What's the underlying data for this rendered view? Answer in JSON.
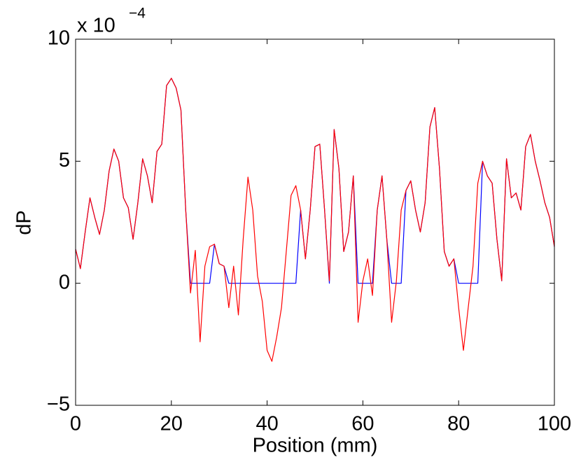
{
  "chart_data": {
    "type": "line",
    "y_exponent_base": "x 10",
    "y_exponent": "−4",
    "xlabel": "Position (mm)",
    "ylabel": "dP",
    "x": [
      0,
      1,
      2,
      3,
      4,
      5,
      6,
      7,
      8,
      9,
      10,
      11,
      12,
      13,
      14,
      15,
      16,
      17,
      18,
      19,
      20,
      21,
      22,
      23,
      24,
      25,
      26,
      27,
      28,
      29,
      30,
      31,
      32,
      33,
      34,
      35,
      36,
      37,
      38,
      39,
      40,
      41,
      42,
      43,
      44,
      45,
      46,
      47,
      48,
      49,
      50,
      51,
      52,
      53,
      54,
      55,
      56,
      57,
      58,
      59,
      60,
      61,
      62,
      63,
      64,
      65,
      66,
      67,
      68,
      69,
      70,
      71,
      72,
      73,
      74,
      75,
      76,
      77,
      78,
      79,
      80,
      81,
      82,
      83,
      84,
      85,
      86,
      87,
      88,
      89,
      90,
      91,
      92,
      93,
      94,
      95,
      96,
      97,
      98,
      99,
      100
    ],
    "series": [
      {
        "color": "#0000ff",
        "values": [
          1.4,
          0.6,
          2.1,
          3.5,
          2.7,
          2.0,
          3.0,
          4.6,
          5.5,
          5.0,
          3.5,
          3.1,
          1.8,
          3.3,
          5.1,
          4.4,
          3.3,
          5.4,
          5.7,
          8.1,
          8.4,
          8.0,
          7.1,
          3.0,
          0,
          0,
          0,
          0,
          0,
          1.6,
          0.8,
          0.7,
          0,
          0,
          0,
          0,
          0,
          0,
          0,
          0,
          0,
          0,
          0,
          0,
          0,
          0,
          0,
          3.0,
          1.0,
          3.0,
          5.6,
          5.7,
          3.0,
          0,
          6.3,
          4.7,
          1.3,
          2.1,
          4.4,
          0,
          0,
          0,
          0,
          3.0,
          4.4,
          1.8,
          0,
          0,
          0,
          3.8,
          4.2,
          3.0,
          2.1,
          3.3,
          6.4,
          7.2,
          4.7,
          1.3,
          0.7,
          1.0,
          0,
          0,
          0,
          0,
          0,
          5.0,
          4.4,
          4.1,
          1.8,
          0.1,
          5.1,
          3.5,
          3.7,
          3.0,
          5.6,
          6.1,
          5.0,
          4.2,
          3.3,
          2.7,
          1.5
        ]
      },
      {
        "color": "#ff0000",
        "values": [
          1.4,
          0.6,
          2.1,
          3.5,
          2.7,
          2.0,
          3.0,
          4.6,
          5.5,
          5.0,
          3.5,
          3.1,
          1.8,
          3.3,
          5.1,
          4.4,
          3.3,
          5.4,
          5.7,
          8.1,
          8.4,
          8.0,
          7.1,
          3.0,
          -0.4,
          1.35,
          -2.4,
          0.7,
          1.5,
          1.6,
          0.8,
          0.7,
          -1.0,
          0.7,
          -1.3,
          1.8,
          4.35,
          3.0,
          0.3,
          -0.75,
          -2.75,
          -3.2,
          -2.2,
          -1.0,
          1.3,
          3.6,
          4.0,
          3.0,
          1.0,
          3.0,
          5.6,
          5.7,
          3.0,
          0.1,
          6.3,
          4.7,
          1.3,
          2.1,
          4.4,
          -1.6,
          0.1,
          1.0,
          -0.5,
          3.0,
          4.4,
          1.8,
          -1.6,
          0.1,
          3.0,
          3.8,
          4.2,
          3.0,
          2.1,
          3.3,
          6.4,
          7.2,
          4.7,
          1.3,
          0.7,
          1.0,
          -1.0,
          -2.75,
          -1.0,
          0.7,
          4.1,
          5.0,
          4.4,
          4.1,
          1.8,
          0.1,
          5.1,
          3.5,
          3.7,
          3.0,
          5.6,
          6.1,
          5.0,
          4.2,
          3.3,
          2.7,
          1.5
        ]
      }
    ],
    "xlim": [
      0,
      100
    ],
    "xticks": [
      0,
      20,
      40,
      60,
      80,
      100
    ],
    "ylim": [
      -5,
      10
    ],
    "yticks": [
      {
        "value": -5,
        "label": "−5"
      },
      0,
      5,
      10
    ],
    "grid": false
  }
}
